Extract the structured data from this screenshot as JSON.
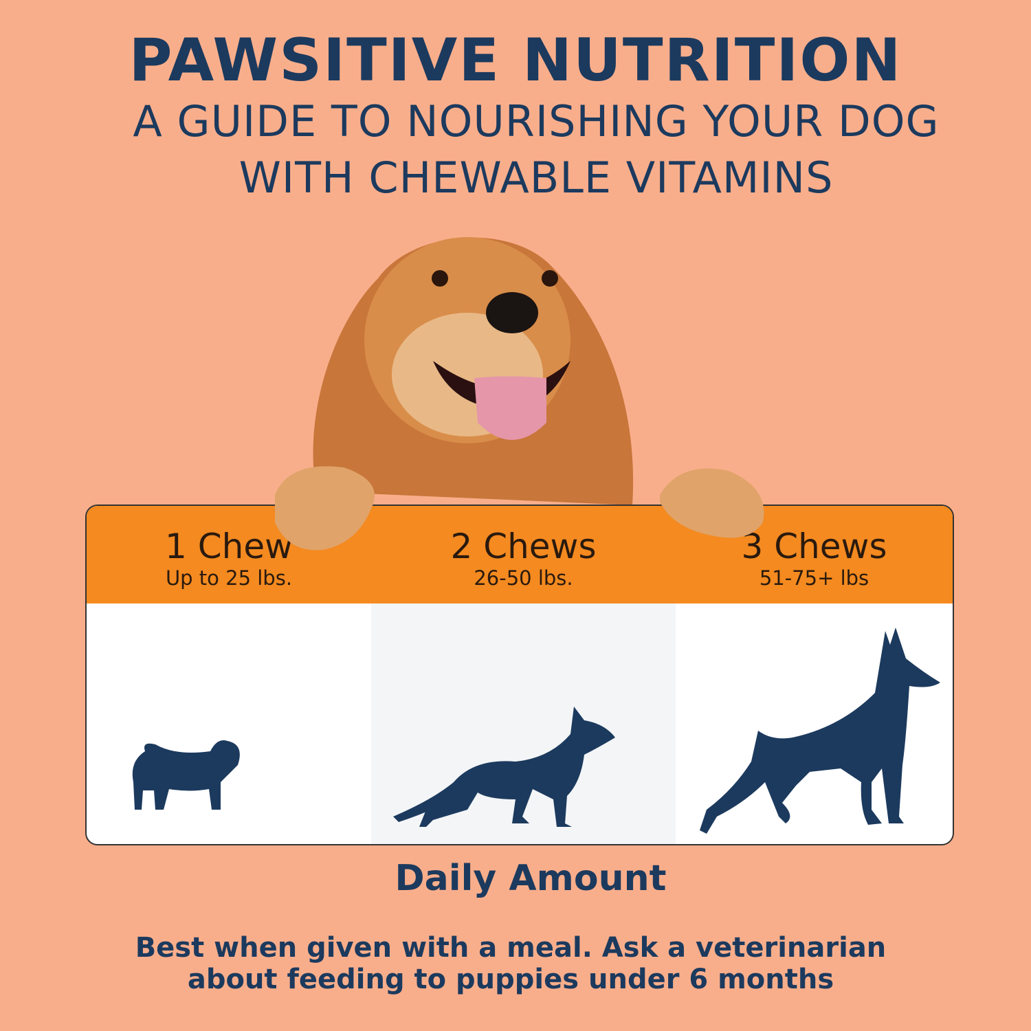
{
  "header": {
    "title": "PAWSITIVE NUTRITION",
    "subtitle_line1": "A GUIDE TO NOURISHING YOUR DOG",
    "subtitle_line2": "WITH CHEWABLE VITAMINS"
  },
  "dosage": [
    {
      "amount": "1 Chew",
      "weight": "Up to 25 lbs.",
      "icon": "pug-silhouette-icon"
    },
    {
      "amount": "2 Chews",
      "weight": "26-50 lbs.",
      "icon": "german-shepherd-silhouette-icon"
    },
    {
      "amount": "3 Chews",
      "weight": "51-75+ lbs",
      "icon": "doberman-silhouette-icon"
    }
  ],
  "caption": "Daily Amount",
  "note": {
    "line1": "Best when given with a meal. Ask a veterinarian",
    "line2": "about feeding to puppies under 6 months"
  },
  "colors": {
    "background": "#f9ae8b",
    "navy": "#1c3a5e",
    "orange": "#f48a20"
  }
}
